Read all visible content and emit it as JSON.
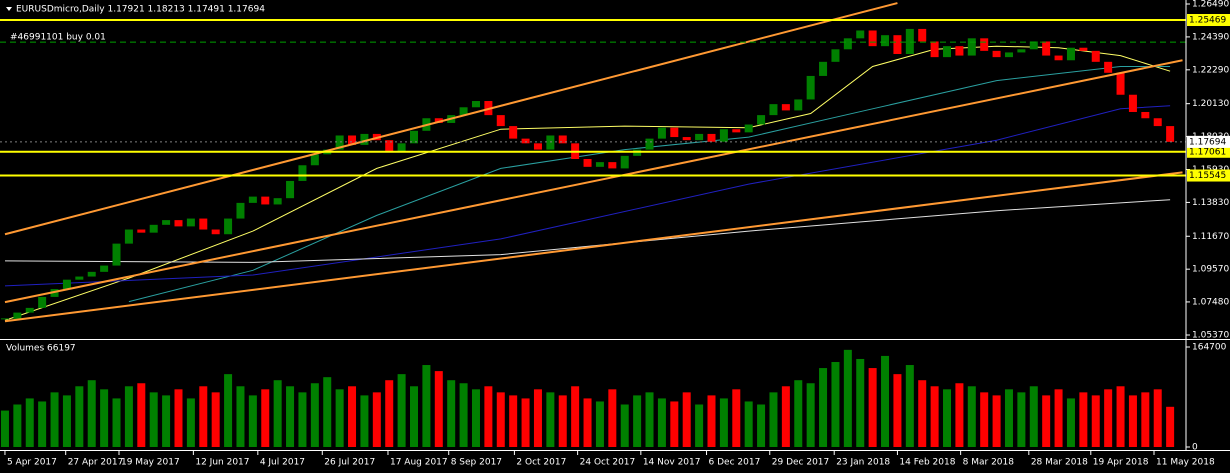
{
  "chart_data": [
    {
      "type": "candlestick",
      "title": "EURUSDmicro,Daily  1.17921 1.18213 1.17491 1.17694",
      "annotation": "#46991101 buy 0.01",
      "order_level": 1.2406,
      "order_color": "#00a000",
      "up_color": "#008000",
      "down_color": "#ff0000",
      "xlim": [
        -0.4,
        95.2
      ],
      "ylim": [
        1.0537,
        1.2649
      ],
      "yticks": [
        {
          "value": 1.2649,
          "label": "1.26490"
        },
        {
          "value": 1.2439,
          "label": "1.24390"
        },
        {
          "value": 1.2229,
          "label": "1.22290"
        },
        {
          "value": 1.2013,
          "label": "1.20130"
        },
        {
          "value": 1.1803,
          "label": "1.18030"
        },
        {
          "value": 1.1593,
          "label": "1.15930"
        },
        {
          "value": 1.1383,
          "label": "1.13830"
        },
        {
          "value": 1.1167,
          "label": "1.11670"
        },
        {
          "value": 1.0957,
          "label": "1.09570"
        },
        {
          "value": 1.0748,
          "label": "1.07480"
        },
        {
          "value": 1.0537,
          "label": "1.05370"
        }
      ],
      "values": [
        1.064,
        1.068,
        1.071,
        1.078,
        1.083,
        1.089,
        1.091,
        1.094,
        1.098,
        1.112,
        1.121,
        1.119,
        1.124,
        1.127,
        1.123,
        1.128,
        1.121,
        1.118,
        1.128,
        1.138,
        1.142,
        1.137,
        1.141,
        1.152,
        1.162,
        1.169,
        1.172,
        1.181,
        1.175,
        1.182,
        1.178,
        1.171,
        1.176,
        1.184,
        1.192,
        1.189,
        1.194,
        1.199,
        1.203,
        1.194,
        1.187,
        1.179,
        1.176,
        1.172,
        1.181,
        1.176,
        1.166,
        1.161,
        1.164,
        1.16,
        1.168,
        1.172,
        1.179,
        1.186,
        1.18,
        1.178,
        1.182,
        1.177,
        1.185,
        1.183,
        1.188,
        1.194,
        1.201,
        1.197,
        1.204,
        1.219,
        1.228,
        1.236,
        1.243,
        1.248,
        1.238,
        1.245,
        1.233,
        1.249,
        1.241,
        1.231,
        1.238,
        1.232,
        1.243,
        1.235,
        1.231,
        1.234,
        1.236,
        1.241,
        1.232,
        1.229,
        1.237,
        1.235,
        1.228,
        1.221,
        1.207,
        1.196,
        1.192,
        1.187,
        1.17694
      ],
      "moving_averages": [
        {
          "color": "#ffff66",
          "x": [
            0,
            10,
            20,
            30,
            40,
            50,
            60,
            65,
            70,
            75,
            80,
            85,
            90,
            94
          ],
          "values": [
            1.063,
            1.09,
            1.12,
            1.16,
            1.185,
            1.187,
            1.186,
            1.195,
            1.225,
            1.236,
            1.238,
            1.237,
            1.232,
            1.222
          ]
        },
        {
          "color": "#2aa0a0",
          "x": [
            10,
            20,
            30,
            40,
            50,
            60,
            70,
            80,
            90,
            94
          ],
          "values": [
            1.075,
            1.095,
            1.13,
            1.16,
            1.172,
            1.18,
            1.198,
            1.216,
            1.225,
            1.225
          ]
        },
        {
          "color": "#2020c0",
          "x": [
            0,
            20,
            40,
            60,
            80,
            90,
            94
          ],
          "values": [
            1.085,
            1.092,
            1.115,
            1.15,
            1.178,
            1.198,
            1.2
          ]
        },
        {
          "color": "#e0e0e0",
          "x": [
            0,
            20,
            40,
            60,
            80,
            94
          ],
          "values": [
            1.101,
            1.1,
            1.105,
            1.12,
            1.133,
            1.14
          ]
        }
      ],
      "trendlines": [
        {
          "color": "#ff9933",
          "x": [
            0,
            72
          ],
          "values": [
            1.118,
            1.2655
          ]
        },
        {
          "color": "#ff9933",
          "x": [
            0,
            95
          ],
          "values": [
            1.0747,
            1.229
          ]
        },
        {
          "color": "#ff9933",
          "x": [
            0,
            95
          ],
          "values": [
            1.0625,
            1.1575
          ]
        }
      ],
      "levels": [
        1.25469,
        1.17061,
        1.15545
      ],
      "level_color": "#ffff00"
    },
    {
      "type": "bar",
      "title": "Volumes 66197",
      "ylim": [
        0,
        164700
      ],
      "yticks": [
        0,
        164700
      ],
      "xticks": [
        {
          "value": 0,
          "label": "5 Apr 2017"
        },
        {
          "value": 4.9,
          "label": "27 Apr 2017"
        },
        {
          "value": 9.2,
          "label": "19 May 2017"
        },
        {
          "value": 15.2,
          "label": "12 Jun 2017"
        },
        {
          "value": 20.4,
          "label": "4 Jul 2017"
        },
        {
          "value": 25.6,
          "label": "26 Jul 2017"
        },
        {
          "value": 30.9,
          "label": "17 Aug 2017"
        },
        {
          "value": 35.8,
          "label": "8 Sep 2017"
        },
        {
          "value": 41.1,
          "label": "2 Oct 2017"
        },
        {
          "value": 46.2,
          "label": "24 Oct 2017"
        },
        {
          "value": 51.3,
          "label": "14 Nov 2017"
        },
        {
          "value": 56.6,
          "label": "6 Dec 2017"
        },
        {
          "value": 61.7,
          "label": "29 Dec 2017"
        },
        {
          "value": 66.9,
          "label": "23 Jan 2018"
        },
        {
          "value": 72.0,
          "label": "14 Feb 2018"
        },
        {
          "value": 77.1,
          "label": "8 Mar 2018"
        },
        {
          "value": 82.6,
          "label": "28 Mar 2018"
        },
        {
          "value": 87.6,
          "label": "19 Apr 2018"
        },
        {
          "value": 92.7,
          "label": "11 May 2018"
        }
      ],
      "values": [
        60000,
        70000,
        80000,
        75000,
        90000,
        85000,
        100000,
        110000,
        95000,
        80000,
        100000,
        105000,
        90000,
        85000,
        95000,
        80000,
        100000,
        90000,
        120000,
        100000,
        85000,
        95000,
        110000,
        100000,
        90000,
        105000,
        115000,
        95000,
        100000,
        85000,
        90000,
        110000,
        120000,
        100000,
        135000,
        125000,
        110000,
        105000,
        95000,
        100000,
        90000,
        85000,
        80000,
        95000,
        90000,
        85000,
        100000,
        80000,
        75000,
        95000,
        70000,
        85000,
        90000,
        80000,
        75000,
        90000,
        70000,
        85000,
        80000,
        95000,
        75000,
        70000,
        90000,
        100000,
        110000,
        105000,
        130000,
        140000,
        160000,
        145000,
        130000,
        150000,
        120000,
        135000,
        110000,
        100000,
        95000,
        105000,
        100000,
        90000,
        85000,
        95000,
        90000,
        100000,
        85000,
        95000,
        80000,
        90000,
        85000,
        95000,
        100000,
        85000,
        90000,
        95000,
        66197
      ]
    }
  ]
}
